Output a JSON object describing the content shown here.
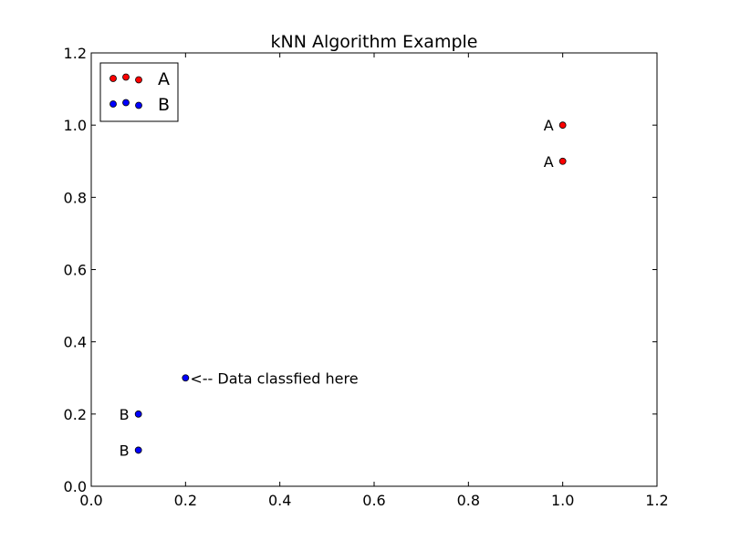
{
  "chart_data": {
    "type": "scatter",
    "title": "kNN Algorithm Example",
    "xlabel": "",
    "ylabel": "",
    "xlim": [
      0.0,
      1.2
    ],
    "ylim": [
      0.0,
      1.2
    ],
    "xticks": [
      "0.0",
      "0.2",
      "0.4",
      "0.6",
      "0.8",
      "1.0",
      "1.2"
    ],
    "yticks": [
      "0.0",
      "0.2",
      "0.4",
      "0.6",
      "0.8",
      "1.0",
      "1.2"
    ],
    "grid": false,
    "legend_position": "top-left",
    "series": [
      {
        "name": "A",
        "color": "#ff0000",
        "points": [
          {
            "x": 1.0,
            "y": 1.0
          },
          {
            "x": 1.0,
            "y": 0.9
          }
        ]
      },
      {
        "name": "B",
        "color": "#0000ff",
        "points": [
          {
            "x": 0.1,
            "y": 0.2
          },
          {
            "x": 0.1,
            "y": 0.1
          }
        ]
      }
    ],
    "query_point": {
      "x": 0.2,
      "y": 0.3,
      "color": "#0000ff"
    },
    "annotations": [
      {
        "text": "A",
        "x": 1.0,
        "y": 1.0
      },
      {
        "text": "A",
        "x": 1.0,
        "y": 0.9
      },
      {
        "text": "B",
        "x": 0.1,
        "y": 0.2
      },
      {
        "text": "B",
        "x": 0.1,
        "y": 0.1
      },
      {
        "text": "<-- Data classfied here",
        "x": 0.2,
        "y": 0.3
      }
    ]
  }
}
